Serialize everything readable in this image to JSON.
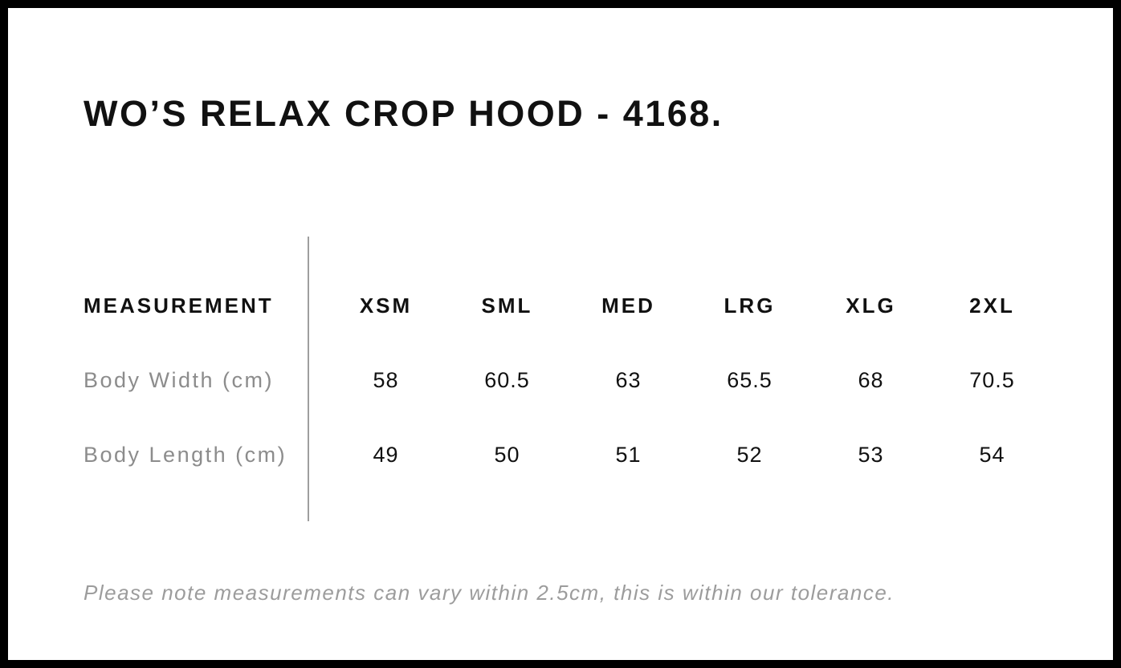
{
  "page": {
    "title": "WO’S RELAX CROP HOOD - 4168.",
    "note": "Please note measurements can vary within 2.5cm, this is within our tolerance."
  },
  "size_chart": {
    "measurement_header": "MEASUREMENT",
    "size_headers": [
      "XSM",
      "SML",
      "MED",
      "LRG",
      "XLG",
      "2XL"
    ],
    "rows": [
      {
        "label": "Body Width (cm)",
        "values": [
          "58",
          "60.5",
          "63",
          "65.5",
          "68",
          "70.5"
        ]
      },
      {
        "label": "Body Length (cm)",
        "values": [
          "49",
          "50",
          "51",
          "52",
          "53",
          "54"
        ]
      }
    ]
  },
  "colors": {
    "frame_border": "#000000",
    "title_text": "#111111",
    "header_text": "#111111",
    "value_text": "#111111",
    "label_text": "#8c8c8c",
    "note_text": "#9c9c9c",
    "divider": "#9e9e9e",
    "background": "#ffffff"
  }
}
